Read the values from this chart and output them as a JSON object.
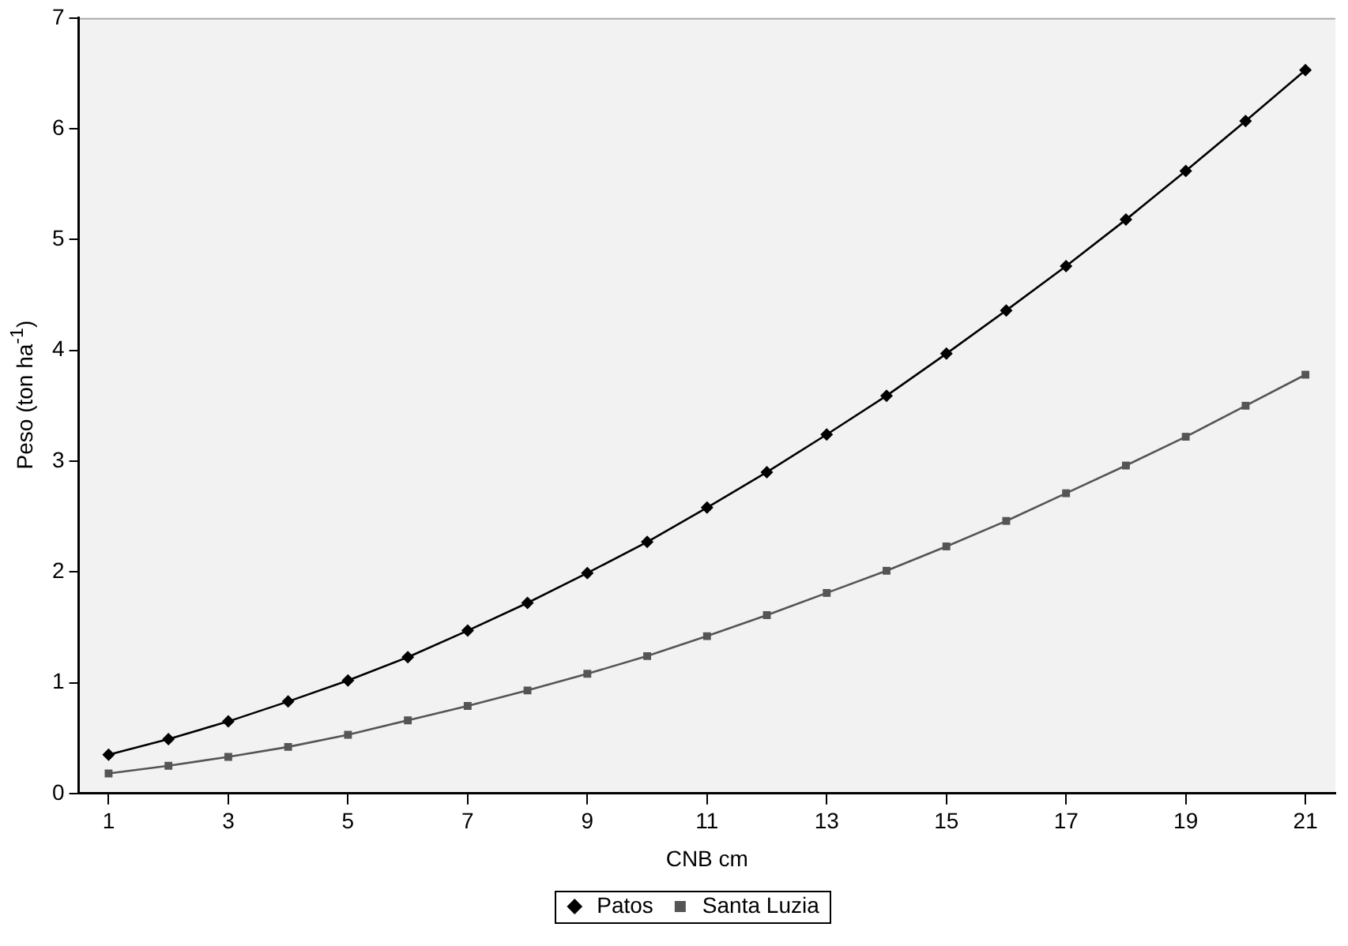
{
  "chart_data": {
    "type": "line",
    "xlabel": "CNB cm",
    "ylabel": "Peso (ton ha$^{-1}$)",
    "x": [
      1,
      2,
      3,
      4,
      5,
      6,
      7,
      8,
      9,
      10,
      11,
      12,
      13,
      14,
      15,
      16,
      17,
      18,
      19,
      20,
      21
    ],
    "series": [
      {
        "name": "Patos",
        "color": "#000000",
        "marker": "diamond",
        "values": [
          0.35,
          0.49,
          0.65,
          0.83,
          1.02,
          1.23,
          1.47,
          1.72,
          1.99,
          2.27,
          2.58,
          2.9,
          3.24,
          3.59,
          3.97,
          4.36,
          4.76,
          5.18,
          5.62,
          6.07,
          6.53
        ]
      },
      {
        "name": "Santa Luzia",
        "color": "#555555",
        "marker": "square",
        "values": [
          0.18,
          0.25,
          0.33,
          0.42,
          0.53,
          0.66,
          0.79,
          0.93,
          1.08,
          1.24,
          1.42,
          1.61,
          1.81,
          2.01,
          2.23,
          2.46,
          2.71,
          2.96,
          3.22,
          3.5,
          3.78
        ]
      }
    ],
    "xlim": [
      0.5,
      21.5
    ],
    "xticks": [
      1,
      3,
      5,
      7,
      9,
      11,
      13,
      15,
      17,
      19,
      21
    ],
    "ylim": [
      0,
      7
    ],
    "yticks": [
      0,
      1,
      2,
      3,
      4,
      5,
      6,
      7
    ],
    "grid": false,
    "legend": "bottom"
  }
}
